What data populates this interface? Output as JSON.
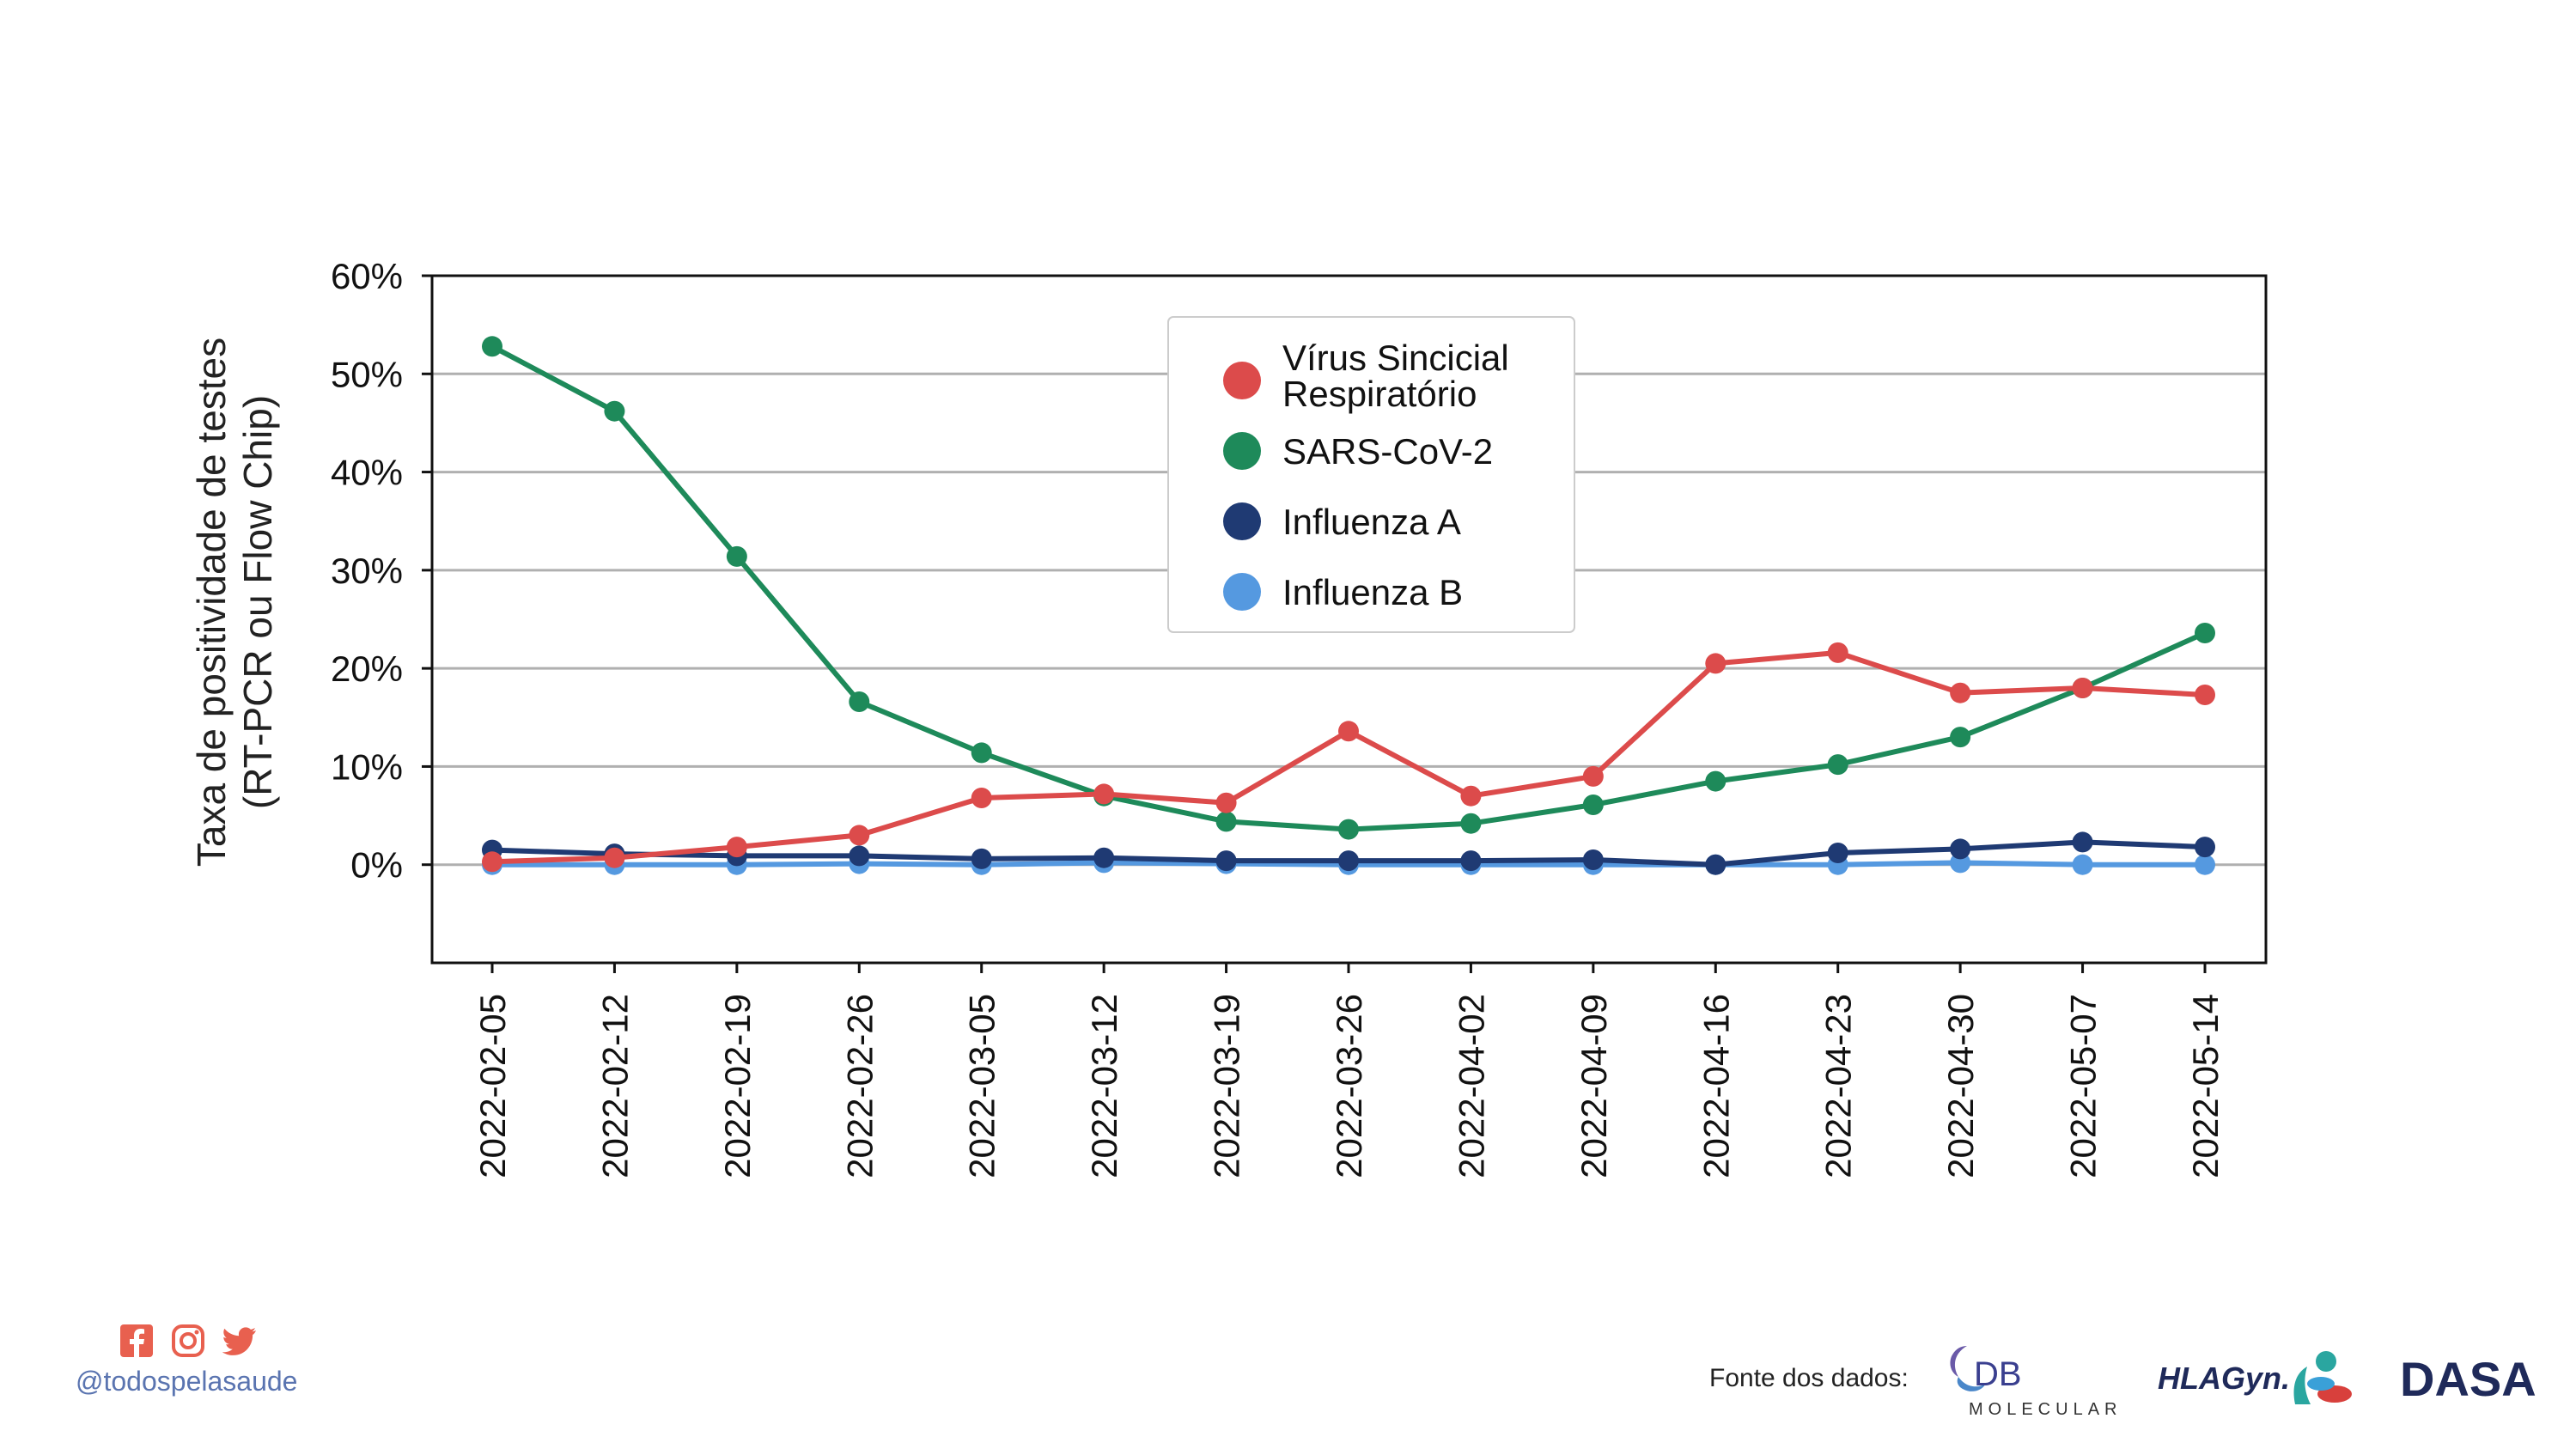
{
  "chart_data": {
    "type": "line",
    "title": "",
    "ylabel_line1": "Taxa de positividade de testes",
    "ylabel_line2": "(RT-PCR ou Flow Chip)",
    "xlabel": "",
    "ylim": [
      -10,
      60
    ],
    "yticks": [
      0,
      10,
      20,
      30,
      40,
      50,
      60
    ],
    "ytick_labels": [
      "0%",
      "10%",
      "20%",
      "30%",
      "40%",
      "50%",
      "60%"
    ],
    "grid": "horizontal",
    "legend_position": "top-center",
    "x": [
      "2022-02-05",
      "2022-02-12",
      "2022-02-19",
      "2022-02-26",
      "2022-03-05",
      "2022-03-12",
      "2022-03-19",
      "2022-03-26",
      "2022-04-02",
      "2022-04-09",
      "2022-04-16",
      "2022-04-23",
      "2022-04-30",
      "2022-05-07",
      "2022-05-14"
    ],
    "series": [
      {
        "name_line1": "Vírus Sincicial",
        "name_line2": "Respiratório",
        "color": "#dc4b4b",
        "values": [
          0.3,
          0.7,
          1.8,
          3.0,
          6.8,
          7.2,
          6.3,
          13.6,
          7.0,
          9.0,
          20.5,
          21.6,
          17.5,
          18.0,
          17.3
        ]
      },
      {
        "name_line1": "SARS-CoV-2",
        "name_line2": "",
        "color": "#1e8a5a",
        "values": [
          52.8,
          46.2,
          31.4,
          16.6,
          11.4,
          7.0,
          4.4,
          3.6,
          4.2,
          6.1,
          8.5,
          10.2,
          13.0,
          18.0,
          23.6
        ]
      },
      {
        "name_line1": "Influenza A",
        "name_line2": "",
        "color": "#1f3a73",
        "values": [
          1.5,
          1.1,
          0.9,
          0.9,
          0.6,
          0.7,
          0.4,
          0.4,
          0.4,
          0.5,
          0.0,
          1.2,
          1.6,
          2.3,
          1.8
        ]
      },
      {
        "name_line1": "Influenza B",
        "name_line2": "",
        "color": "#5599e0",
        "values": [
          0.0,
          0.0,
          0.0,
          0.1,
          0.0,
          0.2,
          0.1,
          0.0,
          0.0,
          0.0,
          0.0,
          0.0,
          0.2,
          0.0,
          0.0
        ]
      }
    ]
  },
  "footer": {
    "social_icons": [
      "facebook-icon",
      "instagram-icon",
      "twitter-icon"
    ],
    "social_color": "#e8604f",
    "handle": "@todospelasaude",
    "source_label": "Fonte dos dados:",
    "logos": {
      "db": {
        "main": "DB",
        "sub": "MOLECULAR"
      },
      "hlagyn": {
        "text": "HLAGyn."
      },
      "dasa": {
        "text": "DASA"
      }
    }
  }
}
